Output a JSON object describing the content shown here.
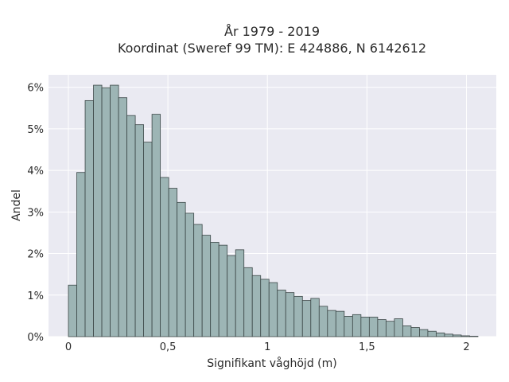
{
  "chart_data": {
    "type": "bar",
    "title": "År 1979 - 2019",
    "subtitle": "Koordinat (Sweref 99 TM): E 424886, N 6142612",
    "xlabel": "Signifikant våghöjd (m)",
    "ylabel": "Andel",
    "xlim": [
      -0.1,
      2.15
    ],
    "ylim": [
      0,
      6.3
    ],
    "bin_width": 0.042,
    "grid": true,
    "x_ticks": [
      {
        "value": 0,
        "label": "0"
      },
      {
        "value": 0.5,
        "label": "0,5"
      },
      {
        "value": 1,
        "label": "1"
      },
      {
        "value": 1.5,
        "label": "1,5"
      },
      {
        "value": 2,
        "label": "2"
      }
    ],
    "y_ticks": [
      {
        "value": 0,
        "label": "0%"
      },
      {
        "value": 1,
        "label": "1%"
      },
      {
        "value": 2,
        "label": "2%"
      },
      {
        "value": 3,
        "label": "3%"
      },
      {
        "value": 4,
        "label": "4%"
      },
      {
        "value": 5,
        "label": "5%"
      },
      {
        "value": 6,
        "label": "6%"
      }
    ],
    "bin_starts": [
      0,
      0.042,
      0.084,
      0.126,
      0.168,
      0.21,
      0.252,
      0.294,
      0.336,
      0.378,
      0.42,
      0.462,
      0.504,
      0.546,
      0.588,
      0.63,
      0.672,
      0.714,
      0.756,
      0.798,
      0.84,
      0.882,
      0.924,
      0.966,
      1.008,
      1.05,
      1.092,
      1.134,
      1.176,
      1.218,
      1.26,
      1.302,
      1.344,
      1.386,
      1.428,
      1.47,
      1.512,
      1.554,
      1.596,
      1.638,
      1.68,
      1.722,
      1.764,
      1.806,
      1.848,
      1.89,
      1.932,
      1.974,
      2.016
    ],
    "values": [
      1.24,
      3.95,
      5.68,
      6.05,
      5.99,
      6.05,
      5.75,
      5.32,
      5.1,
      4.68,
      5.35,
      3.83,
      3.57,
      3.23,
      2.97,
      2.7,
      2.44,
      2.27,
      2.2,
      1.95,
      2.09,
      1.66,
      1.47,
      1.38,
      1.3,
      1.12,
      1.06,
      0.97,
      0.87,
      0.92,
      0.73,
      0.63,
      0.61,
      0.49,
      0.53,
      0.47,
      0.47,
      0.41,
      0.37,
      0.43,
      0.26,
      0.22,
      0.17,
      0.13,
      0.09,
      0.06,
      0.04,
      0.02,
      0.01
    ],
    "colors": {
      "bar_fill": "#9db5b5",
      "bar_stroke": "#3c4747",
      "plot_bg": "#eaeaf2",
      "grid": "#ffffff",
      "text": "#2a2a2a"
    }
  }
}
